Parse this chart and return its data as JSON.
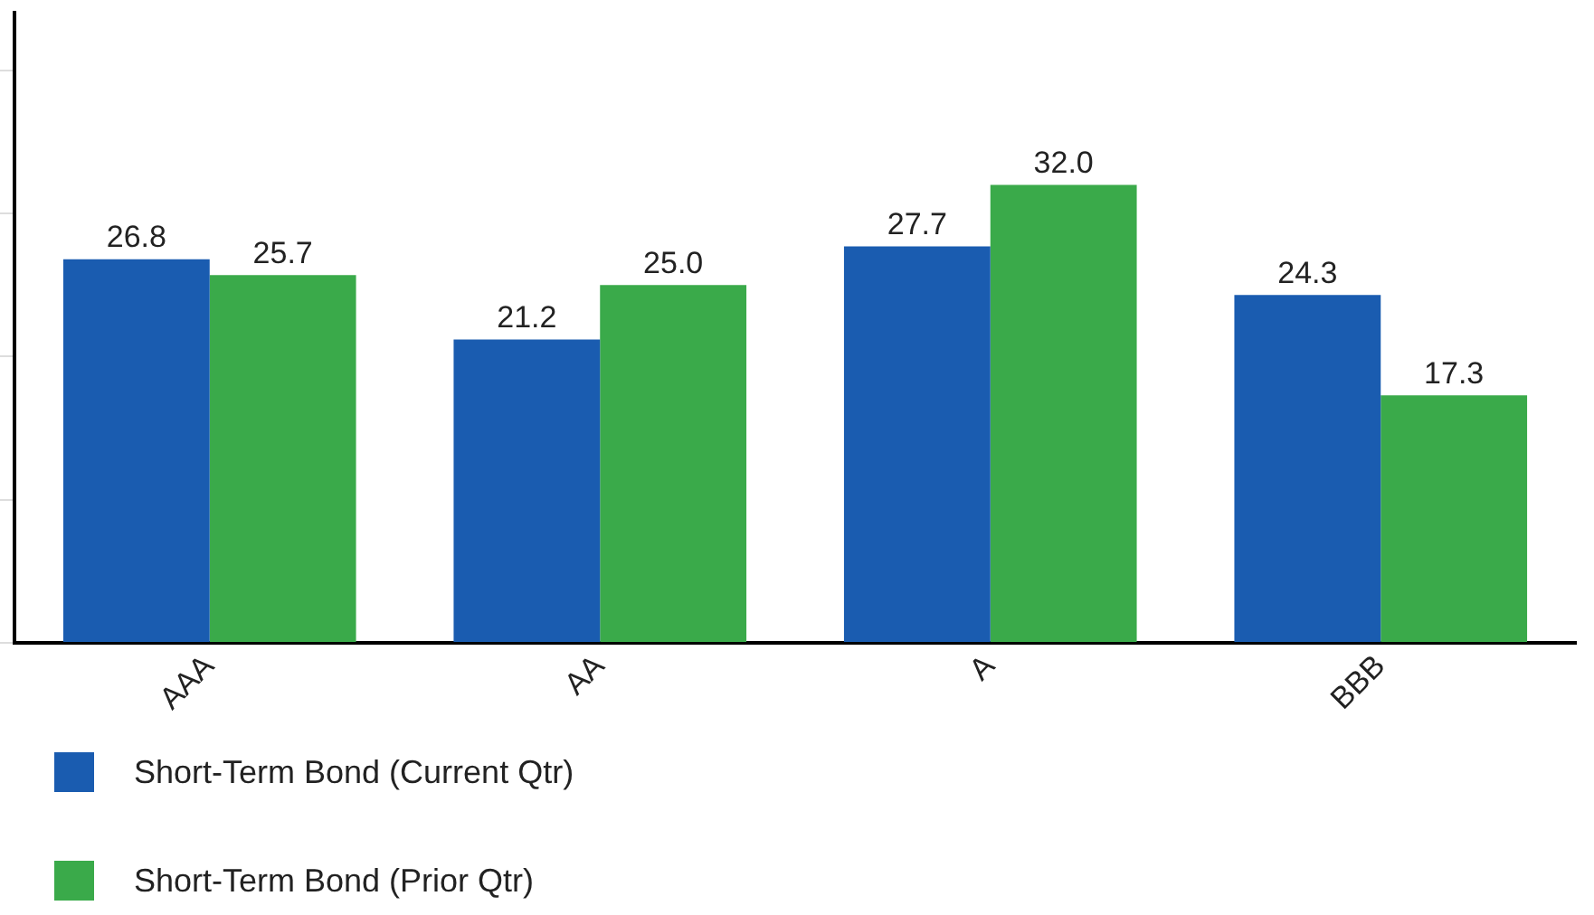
{
  "chart_data": {
    "type": "bar",
    "categories": [
      "AAA",
      "AA",
      "A",
      "BBB"
    ],
    "series": [
      {
        "name": "Short-Term Bond (Current Qtr)",
        "color": "#1a5cb0",
        "values": [
          26.8,
          21.2,
          27.7,
          24.3
        ],
        "value_labels": [
          "26.8",
          "21.2",
          "27.7",
          "24.3"
        ]
      },
      {
        "name": "Short-Term Bond (Prior Qtr)",
        "color": "#3aaa4a",
        "values": [
          25.7,
          25.0,
          32.0,
          17.3
        ],
        "value_labels": [
          "25.7",
          "25.0",
          "32.0",
          "17.3"
        ]
      }
    ],
    "ylim": [
      0,
      44
    ],
    "yticks": [
      {
        "value": 0,
        "label": null
      },
      {
        "value": 10,
        "label": null
      },
      {
        "value": 20,
        "label": null
      },
      {
        "value": 30,
        "label": null
      },
      {
        "value": 40,
        "label": null
      }
    ],
    "tick_labels": "x",
    "grid": false,
    "legend": "bottom left"
  }
}
